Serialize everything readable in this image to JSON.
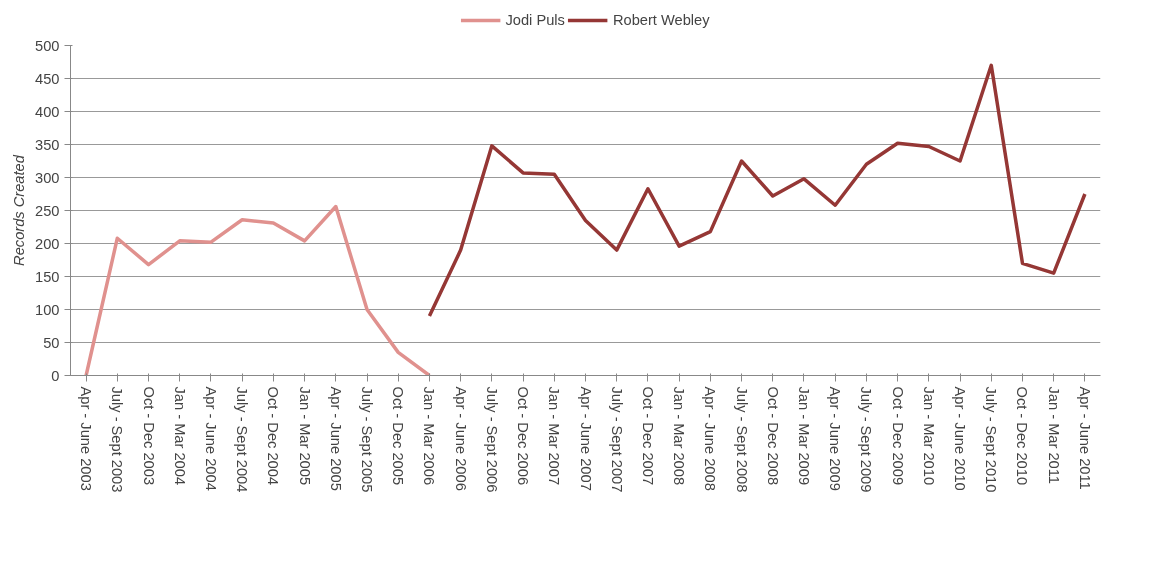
{
  "chart_data": {
    "type": "line",
    "ylabel": "Records Created",
    "categories": [
      "Apr - June 2003",
      "July - Sept 2003",
      "Oct - Dec 2003",
      "Jan - Mar 2004",
      "Apr - June 2004",
      "July - Sept 2004",
      "Oct - Dec 2004",
      "Jan - Mar 2005",
      "Apr - June 2005",
      "July - Sept 2005",
      "Oct - Dec 2005",
      "Jan - Mar 2006",
      "Apr - June 2006",
      "July - Sept 2006",
      "Oct - Dec 2006",
      "Jan - Mar 2007",
      "Apr - June 2007",
      "July - Sept 2007",
      "Oct - Dec 2007",
      "Jan - Mar 2008",
      "Apr - June 2008",
      "July - Sept 2008",
      "Oct - Dec 2008",
      "Jan - Mar 2009",
      "Apr - June 2009",
      "July - Sept 2009",
      "Oct - Dec 2009",
      "Jan - Mar 2010",
      "Apr - June 2010",
      "July - Sept 2010",
      "Oct - Dec 2010",
      "Jan - Mar 2011",
      "Apr - June 2011"
    ],
    "series": [
      {
        "name": "Jodi Puls",
        "color": "#e0918e",
        "values": [
          0,
          208,
          168,
          204,
          202,
          236,
          231,
          204,
          256,
          100,
          35,
          0,
          null,
          null,
          null,
          null,
          null,
          null,
          null,
          null,
          null,
          null,
          null,
          null,
          null,
          null,
          null,
          null,
          null,
          null,
          null,
          null,
          null
        ]
      },
      {
        "name": "Robert Webley",
        "color": "#953735",
        "values": [
          null,
          null,
          null,
          null,
          null,
          null,
          null,
          null,
          null,
          null,
          null,
          90,
          190,
          348,
          307,
          305,
          235,
          190,
          283,
          196,
          218,
          325,
          272,
          298,
          258,
          320,
          352,
          347,
          325,
          470,
          170,
          155,
          275
        ]
      }
    ],
    "ylim": [
      0,
      500
    ],
    "yticks": [
      0,
      50,
      100,
      150,
      200,
      250,
      300,
      350,
      400,
      450,
      500
    ],
    "grid": "y",
    "legend": "top",
    "line_style": "solid",
    "marker": "none"
  }
}
